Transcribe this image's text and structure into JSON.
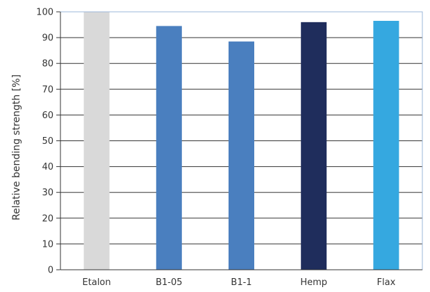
{
  "chart_data": {
    "type": "bar",
    "title": "",
    "xlabel": "",
    "ylabel": "Relative bending strength [%]",
    "categories": [
      "Etalon",
      "B1-05",
      "B1-1",
      "Hemp",
      "Flax"
    ],
    "values": [
      100,
      94.5,
      88.5,
      96,
      96.5
    ],
    "colors": [
      "#d9d9d9",
      "#4a7fbf",
      "#4a7fbf",
      "#1f2d5c",
      "#35a8e0"
    ],
    "ylim": [
      0,
      100
    ],
    "yticks": [
      0,
      10,
      20,
      30,
      40,
      50,
      60,
      70,
      80,
      90,
      100
    ],
    "grid": true,
    "frame_color": "#9bb7d9",
    "grid_color": "#333333"
  }
}
